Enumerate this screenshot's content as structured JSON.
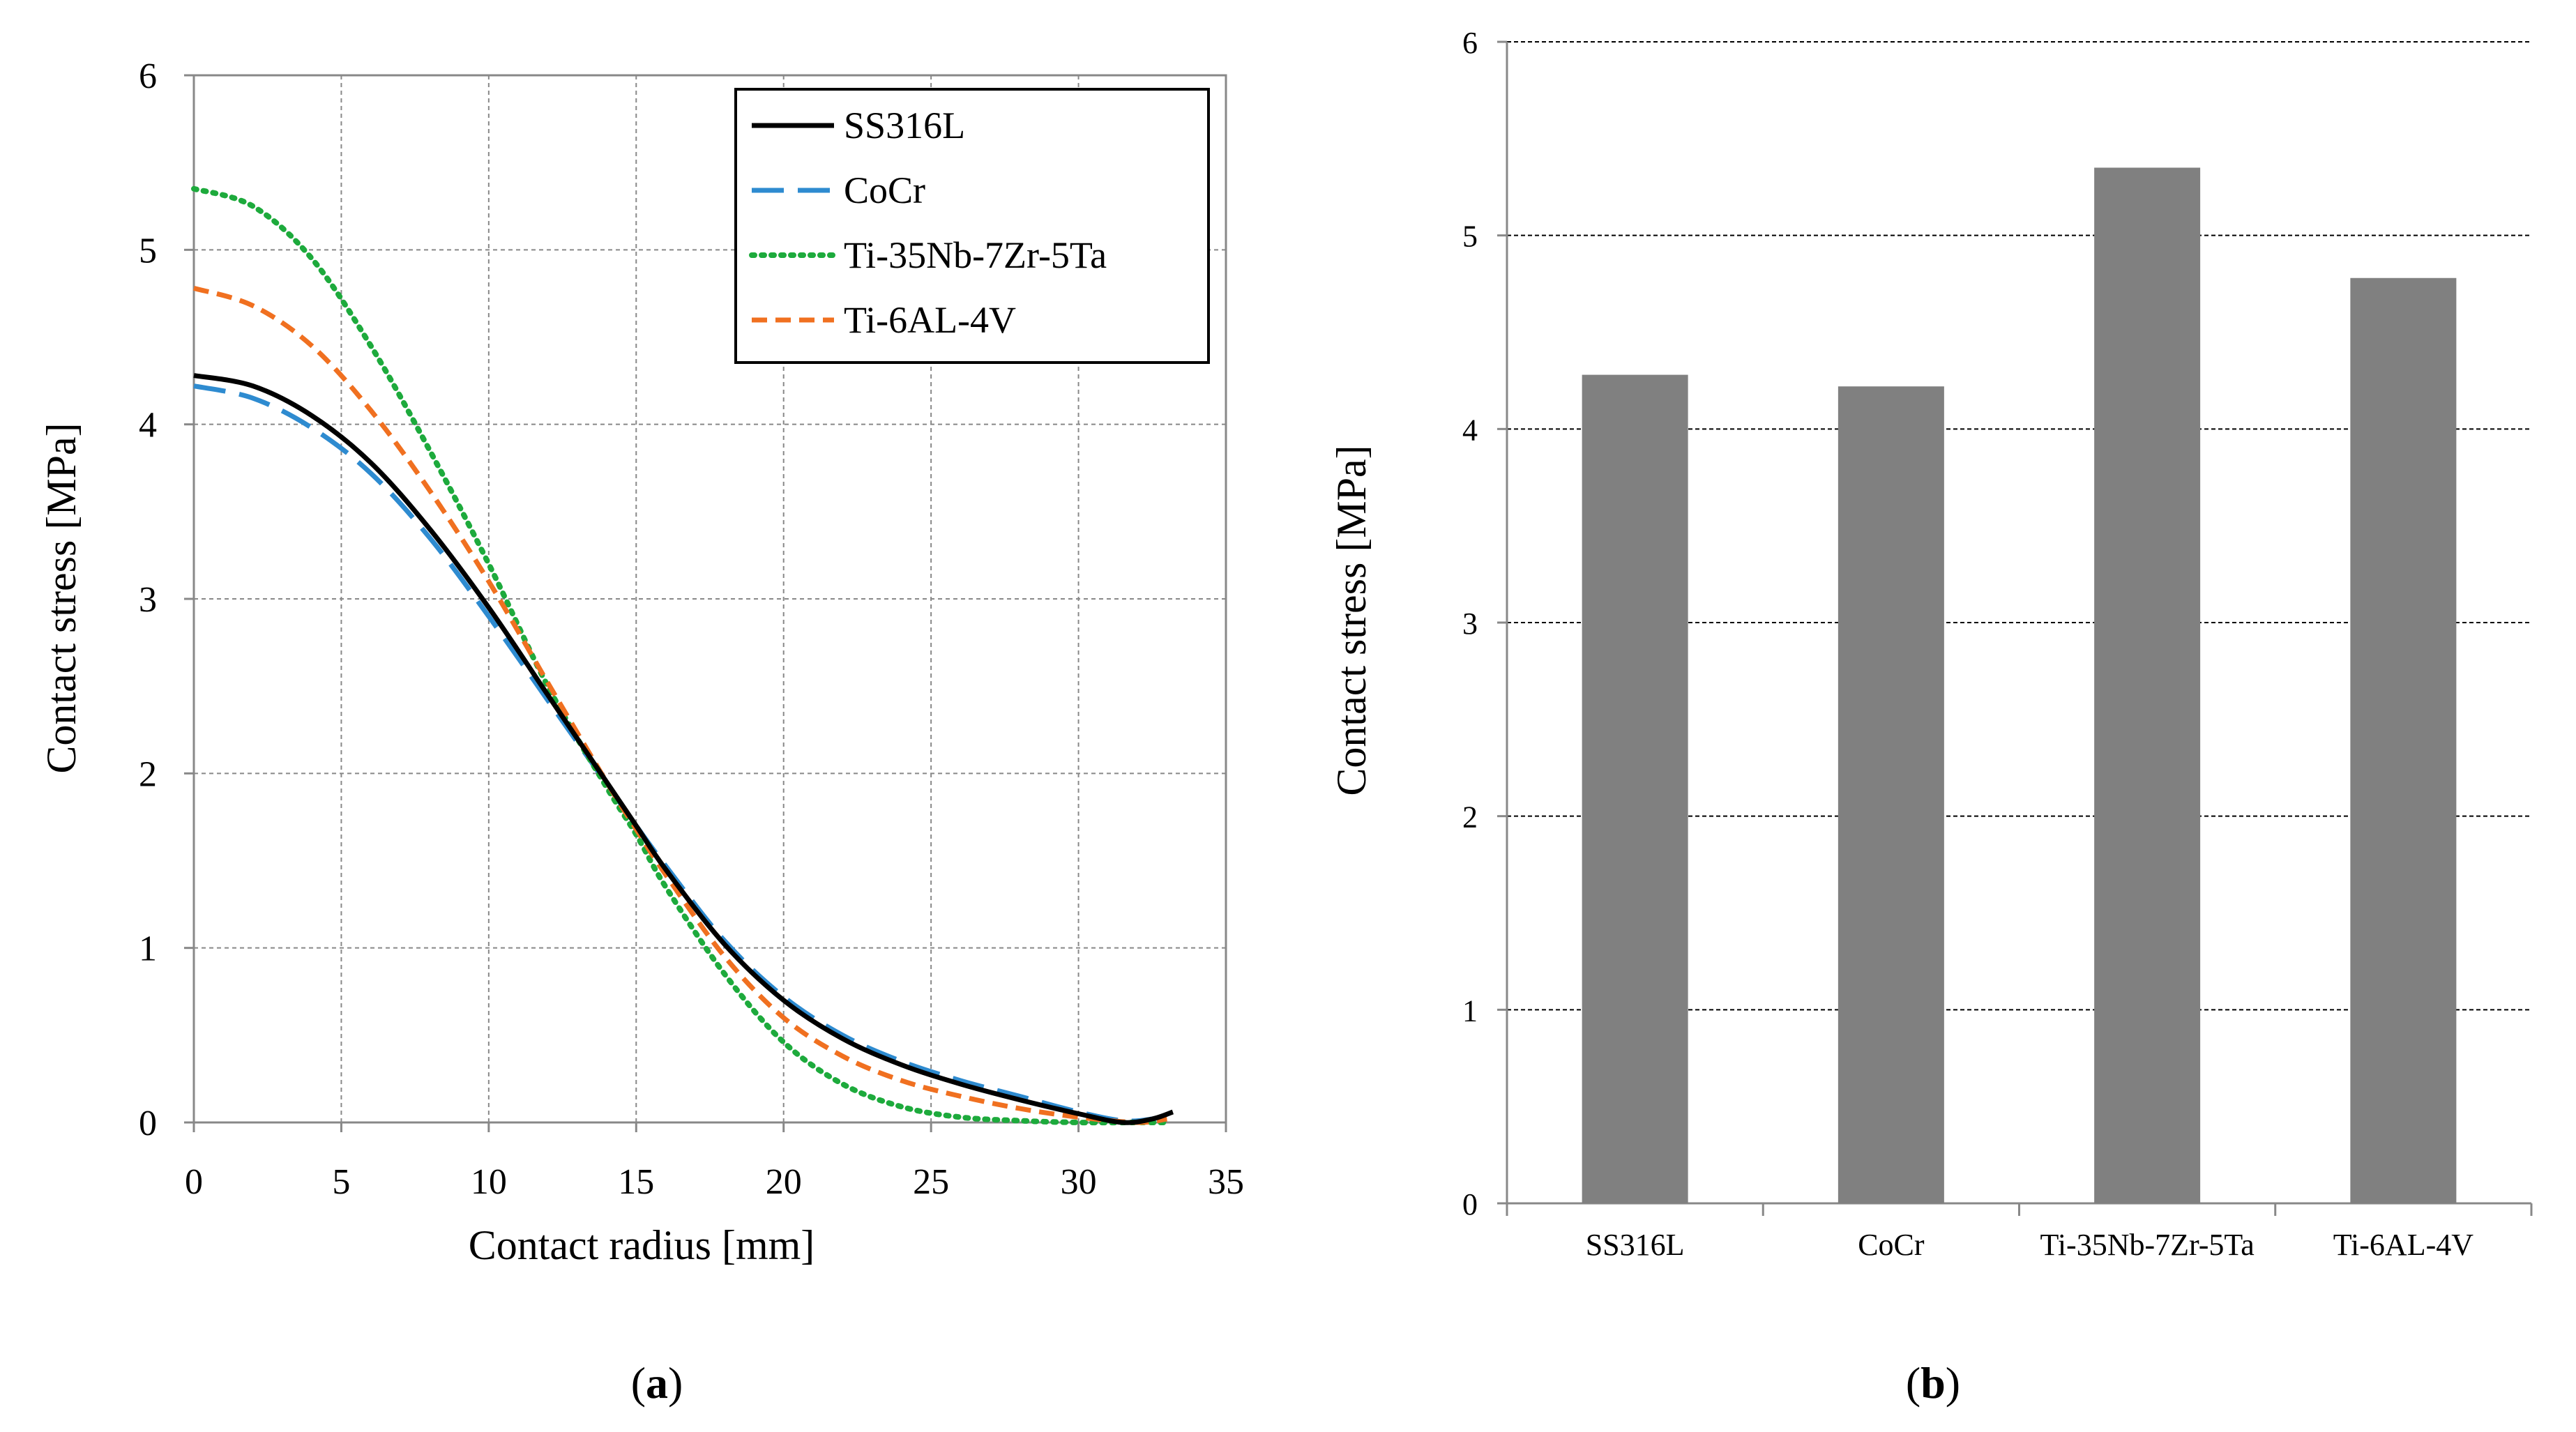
{
  "chart_data": [
    {
      "panel": "(a)",
      "type": "line",
      "title": "",
      "xlabel": "Contact radius [mm]",
      "ylabel": "Contact stress [MPa]",
      "xlim": [
        0,
        35
      ],
      "ylim": [
        0,
        6
      ],
      "xticks": [
        "0",
        "5",
        "10",
        "15",
        "20",
        "25",
        "30",
        "35"
      ],
      "yticks": [
        "0",
        "1",
        "2",
        "3",
        "4",
        "5",
        "6"
      ],
      "grid": true,
      "legend_position": "top-right",
      "series": [
        {
          "name": "SS316L",
          "color": "#000000",
          "dash": "solid",
          "x": [
            0,
            2,
            4,
            6,
            8,
            10,
            12,
            14,
            15,
            16,
            18,
            20,
            22,
            24,
            26,
            28,
            30,
            31.5,
            32.5,
            33.2
          ],
          "y": [
            4.28,
            4.22,
            4.05,
            3.78,
            3.4,
            2.95,
            2.45,
            1.95,
            1.7,
            1.45,
            1.02,
            0.7,
            0.48,
            0.33,
            0.22,
            0.13,
            0.05,
            0.0,
            0.02,
            0.06
          ]
        },
        {
          "name": "CoCr",
          "color": "#2E8BD0",
          "dash": "longdash",
          "x": [
            0,
            2,
            4,
            6,
            8,
            10,
            12,
            14,
            15,
            16,
            18,
            20,
            22,
            24,
            26,
            28,
            30,
            31.5,
            32.5,
            33.2
          ],
          "y": [
            4.22,
            4.15,
            3.98,
            3.72,
            3.35,
            2.9,
            2.42,
            1.94,
            1.7,
            1.47,
            1.04,
            0.72,
            0.5,
            0.35,
            0.24,
            0.15,
            0.06,
            0.01,
            0.02,
            0.05
          ]
        },
        {
          "name": "Ti-35Nb-7Zr-5Ta",
          "color": "#1DAA3C",
          "dash": "dotted",
          "x": [
            0,
            2,
            4,
            6,
            8,
            10,
            12,
            14,
            15,
            16,
            18,
            20,
            22,
            24,
            26,
            28,
            30,
            32,
            33
          ],
          "y": [
            5.35,
            5.25,
            4.95,
            4.45,
            3.85,
            3.2,
            2.5,
            1.92,
            1.65,
            1.35,
            0.85,
            0.46,
            0.22,
            0.09,
            0.03,
            0.01,
            0.0,
            0.0,
            0.0
          ]
        },
        {
          "name": "Ti-6AL-4V",
          "color": "#F07020",
          "dash": "dashed",
          "x": [
            0,
            2,
            4,
            6,
            8,
            10,
            12,
            14,
            15,
            16,
            18,
            20,
            22,
            24,
            26,
            28,
            30,
            32,
            33
          ],
          "y": [
            4.78,
            4.68,
            4.45,
            4.08,
            3.62,
            3.1,
            2.52,
            1.95,
            1.68,
            1.42,
            0.95,
            0.6,
            0.38,
            0.24,
            0.15,
            0.08,
            0.03,
            0.0,
            0.02
          ]
        }
      ],
      "caption": "(a)"
    },
    {
      "panel": "(b)",
      "type": "bar",
      "title": "",
      "xlabel": "",
      "ylabel": "Contact stress [MPa]",
      "ylim": [
        0,
        6
      ],
      "yticks": [
        "0",
        "1",
        "2",
        "3",
        "4",
        "5",
        "6"
      ],
      "grid": true,
      "bar_color": "#808080",
      "categories": [
        "SS316L",
        "CoCr",
        "Ti-35Nb-7Zr-5Ta",
        "Ti-6AL-4V"
      ],
      "values": [
        4.28,
        4.22,
        5.35,
        4.78
      ],
      "caption": "(b)"
    }
  ]
}
